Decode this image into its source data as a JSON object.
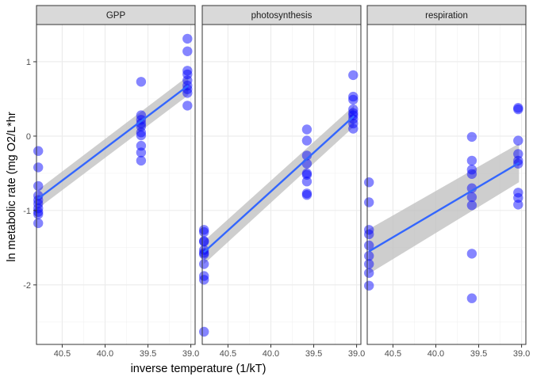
{
  "chart_data": {
    "type": "scatter",
    "xlabel": "inverse temperature (1/kT)",
    "ylabel": "ln metabolic rate (mg O2/L*hr",
    "x_reversed": true,
    "xlim": [
      40.8,
      38.95
    ],
    "ylim": [
      -2.8,
      1.5
    ],
    "x_ticks": [
      40.5,
      40.0,
      39.5,
      39.0
    ],
    "x_tick_labels": [
      "40.5",
      "40.0",
      "39.5",
      "39.0"
    ],
    "y_ticks": [
      -2,
      -1,
      0,
      1
    ],
    "y_tick_labels": [
      "-2",
      "-1",
      "0",
      "1"
    ],
    "grid": true,
    "point_color": "#0000ff",
    "fit_color": "#3366ff",
    "ribbon_color": "#bdbdbd",
    "strip_color": "#d9d9d9",
    "panels": [
      {
        "title": "GPP",
        "fit": {
          "x": [
            40.78,
            39.03
          ],
          "y": [
            -0.84,
            0.68
          ],
          "lower": [
            -0.97,
            0.55
          ],
          "upper": [
            -0.72,
            0.81
          ]
        },
        "points": [
          [
            40.78,
            -0.2
          ],
          [
            40.78,
            -0.42
          ],
          [
            40.78,
            -0.67
          ],
          [
            40.78,
            -0.8
          ],
          [
            40.78,
            -0.86
          ],
          [
            40.78,
            -0.91
          ],
          [
            40.78,
            -0.97
          ],
          [
            40.78,
            -1.02
          ],
          [
            40.78,
            -1.05
          ],
          [
            40.78,
            -1.17
          ],
          [
            39.58,
            0.73
          ],
          [
            39.58,
            0.28
          ],
          [
            39.58,
            0.22
          ],
          [
            39.58,
            0.17
          ],
          [
            39.58,
            0.13
          ],
          [
            39.58,
            0.05
          ],
          [
            39.58,
            0.01
          ],
          [
            39.58,
            -0.13
          ],
          [
            39.58,
            -0.22
          ],
          [
            39.58,
            -0.33
          ],
          [
            39.04,
            1.31
          ],
          [
            39.04,
            1.14
          ],
          [
            39.04,
            0.88
          ],
          [
            39.04,
            0.83
          ],
          [
            39.04,
            0.75
          ],
          [
            39.04,
            0.68
          ],
          [
            39.04,
            0.63
          ],
          [
            39.04,
            0.58
          ],
          [
            39.04,
            0.41
          ]
        ]
      },
      {
        "title": "photosynthesis",
        "fit": {
          "x": [
            40.78,
            39.03
          ],
          "y": [
            -1.56,
            0.27
          ],
          "lower": [
            -1.72,
            0.13
          ],
          "upper": [
            -1.41,
            0.41
          ]
        },
        "points": [
          [
            40.78,
            -1.26
          ],
          [
            40.78,
            -1.29
          ],
          [
            40.78,
            -1.41
          ],
          [
            40.78,
            -1.42
          ],
          [
            40.78,
            -1.53
          ],
          [
            40.78,
            -1.57
          ],
          [
            40.78,
            -1.59
          ],
          [
            40.78,
            -1.72
          ],
          [
            40.78,
            -1.88
          ],
          [
            40.78,
            -1.93
          ],
          [
            40.78,
            -2.63
          ],
          [
            39.58,
            0.09
          ],
          [
            39.58,
            -0.06
          ],
          [
            39.58,
            -0.26
          ],
          [
            39.58,
            -0.37
          ],
          [
            39.58,
            -0.5
          ],
          [
            39.58,
            -0.52
          ],
          [
            39.58,
            -0.61
          ],
          [
            39.58,
            -0.77
          ],
          [
            39.58,
            -0.79
          ],
          [
            39.04,
            0.82
          ],
          [
            39.04,
            0.53
          ],
          [
            39.04,
            0.49
          ],
          [
            39.04,
            0.36
          ],
          [
            39.04,
            0.31
          ],
          [
            39.04,
            0.28
          ],
          [
            39.04,
            0.23
          ],
          [
            39.04,
            0.17
          ],
          [
            39.04,
            0.1
          ]
        ]
      },
      {
        "title": "respiration",
        "fit": {
          "x": [
            40.78,
            39.03
          ],
          "y": [
            -1.55,
            -0.36
          ],
          "lower": [
            -1.85,
            -0.62
          ],
          "upper": [
            -1.25,
            -0.1
          ]
        },
        "points": [
          [
            40.78,
            -0.62
          ],
          [
            40.78,
            -0.89
          ],
          [
            40.78,
            -1.26
          ],
          [
            40.78,
            -1.32
          ],
          [
            40.78,
            -1.47
          ],
          [
            40.78,
            -1.61
          ],
          [
            40.78,
            -1.72
          ],
          [
            40.78,
            -1.84
          ],
          [
            40.78,
            -2.01
          ],
          [
            39.58,
            -0.01
          ],
          [
            39.58,
            -0.33
          ],
          [
            39.58,
            -0.45
          ],
          [
            39.58,
            -0.51
          ],
          [
            39.58,
            -0.7
          ],
          [
            39.58,
            -0.82
          ],
          [
            39.58,
            -0.93
          ],
          [
            39.58,
            -1.58
          ],
          [
            39.58,
            -2.18
          ],
          [
            39.04,
            0.38
          ],
          [
            39.04,
            0.36
          ],
          [
            39.04,
            -0.06
          ],
          [
            39.04,
            -0.24
          ],
          [
            39.04,
            -0.33
          ],
          [
            39.04,
            -0.37
          ],
          [
            39.04,
            -0.76
          ],
          [
            39.04,
            -0.83
          ],
          [
            39.04,
            -0.92
          ]
        ]
      }
    ]
  }
}
